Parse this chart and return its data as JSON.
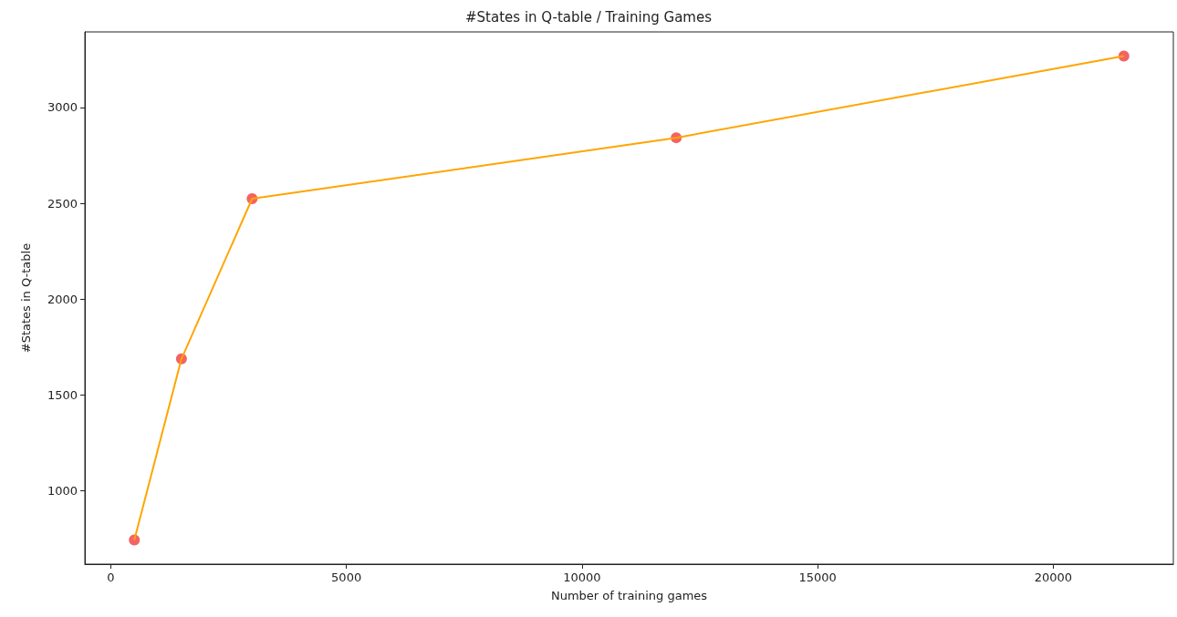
{
  "chart_data": {
    "type": "line",
    "title": "#States in Q-table / Training Games",
    "xlabel": "Number of training games",
    "ylabel": "#States in Q-table",
    "x": [
      500,
      1500,
      3000,
      12000,
      21500
    ],
    "series": [
      {
        "type": "line",
        "color": "#ffa500",
        "marker": "none",
        "values": [
          741,
          1687,
          2524,
          2842,
          3269
        ]
      },
      {
        "type": "scatter",
        "color": "#f03c3c",
        "marker": "circle",
        "values": [
          741,
          1687,
          2524,
          2842,
          3269
        ]
      }
    ],
    "xlim": [
      -550,
      22550
    ],
    "xticks": [
      0,
      5000,
      10000,
      15000,
      20000
    ],
    "ylim": [
      615,
      3395
    ],
    "yticks": [
      1000,
      1500,
      2000,
      2500,
      3000
    ],
    "grid": false
  }
}
